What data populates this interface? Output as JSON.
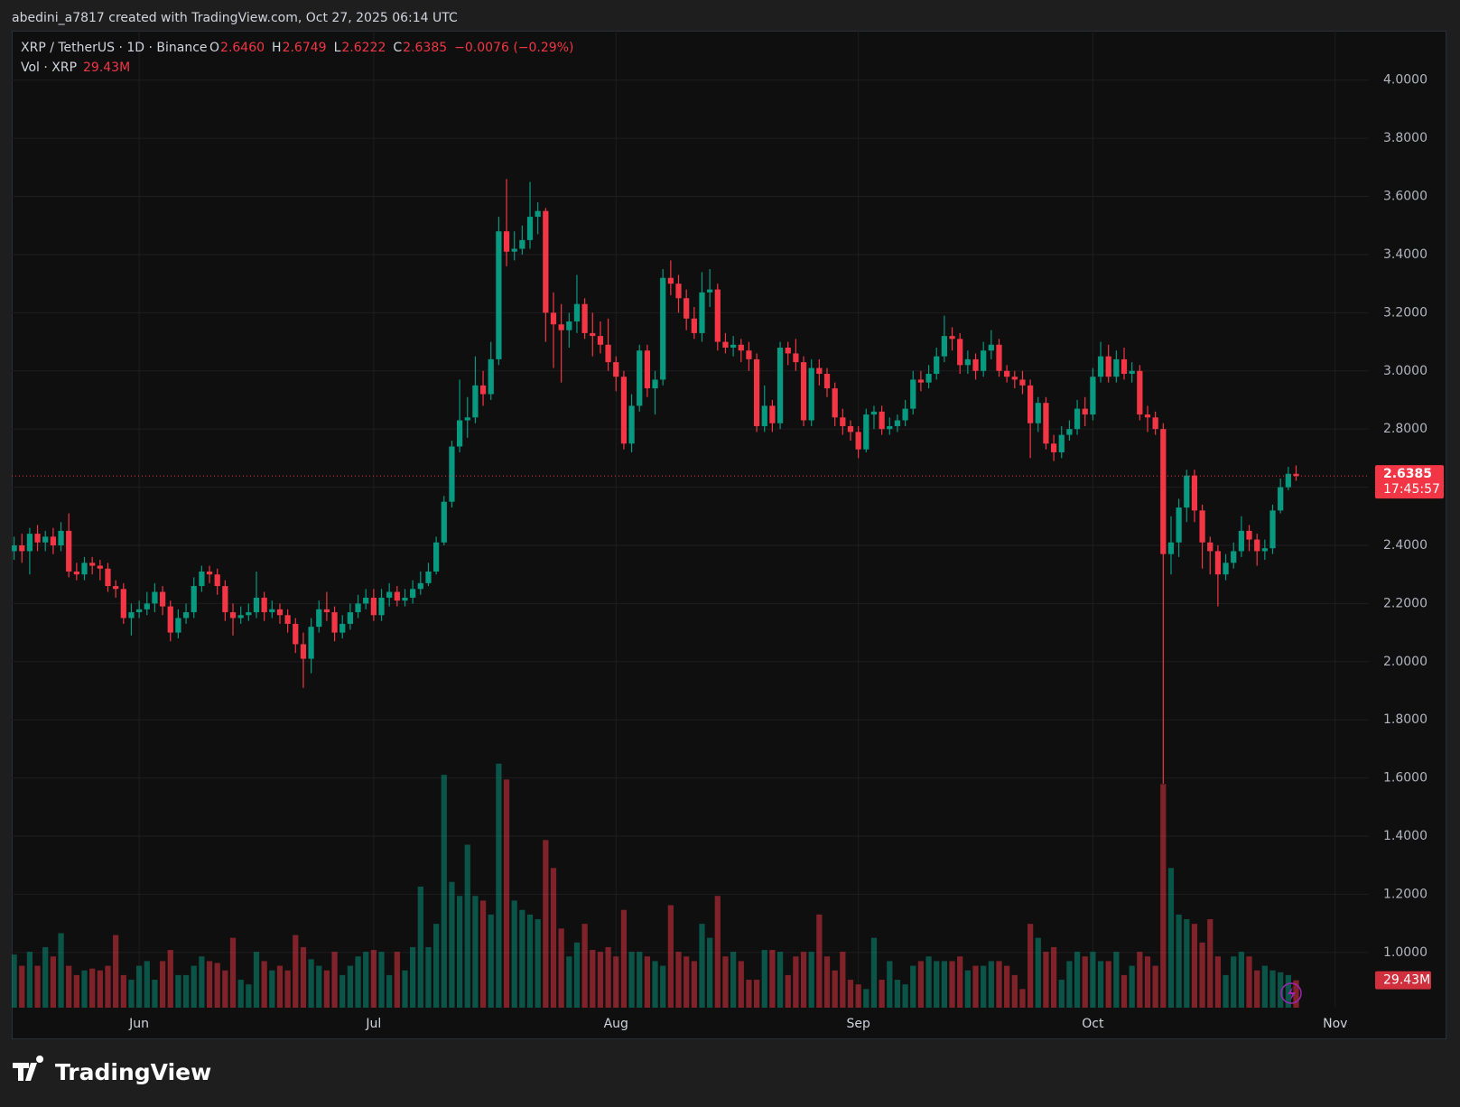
{
  "header": {
    "credit": "abedini_a7817 created with TradingView.com, Oct 27, 2025 06:14 UTC"
  },
  "footer": {
    "logo": "TradingView"
  },
  "chart_data": {
    "type": "candlestick",
    "symbol": "XRP / TetherUS · 1D · Binance",
    "legend_items": [
      {
        "key": "O",
        "value": "2.6460"
      },
      {
        "key": "H",
        "value": "2.6749"
      },
      {
        "key": "L",
        "value": "2.6222"
      },
      {
        "key": "C",
        "value": "2.6385"
      }
    ],
    "change": "−0.0076 (−0.29%)",
    "volume_title": "Vol · XRP",
    "volume_value": "29.43M",
    "last_price_label": "2.6385",
    "countdown": "17:45:57",
    "volume_label": "29.43M",
    "up_color": "#089981",
    "down_color": "#f23645",
    "grid": true,
    "xlim": [
      -0.3,
      173.3
    ],
    "xticks": [
      {
        "value": 16,
        "label": "Jun"
      },
      {
        "value": 46,
        "label": "Jul"
      },
      {
        "value": 77,
        "label": "Aug"
      },
      {
        "value": 108,
        "label": "Sep"
      },
      {
        "value": 138,
        "label": "Oct"
      },
      {
        "value": 169,
        "label": "Nov"
      }
    ],
    "ylim": [
      0.81,
      4.17
    ],
    "yticks": [
      {
        "value": 1,
        "label": "1.0000"
      },
      {
        "value": 1.2,
        "label": "1.2000"
      },
      {
        "value": 1.4,
        "label": "1.4000"
      },
      {
        "value": 1.6,
        "label": "1.6000"
      },
      {
        "value": 1.8,
        "label": "1.8000"
      },
      {
        "value": 2,
        "label": "2.0000"
      },
      {
        "value": 2.2,
        "label": "2.2000"
      },
      {
        "value": 2.4,
        "label": "2.4000"
      },
      {
        "value": 2.6,
        "label": "2.6000"
      },
      {
        "value": 2.8,
        "label": "2.8000"
      },
      {
        "value": 3,
        "label": "3.0000"
      },
      {
        "value": 3.2,
        "label": "3.2000"
      },
      {
        "value": 3.4,
        "label": "3.4000"
      },
      {
        "value": 3.6,
        "label": "3.6000"
      },
      {
        "value": 3.8,
        "label": "3.8000"
      },
      {
        "value": 4,
        "label": "4.0000"
      }
    ],
    "vlim": [
      0,
      1049
    ],
    "open": [
      2.38,
      2.4,
      2.38,
      2.44,
      2.41,
      2.43,
      2.4,
      2.45,
      2.31,
      2.3,
      2.34,
      2.33,
      2.32,
      2.26,
      2.25,
      2.15,
      2.17,
      2.18,
      2.2,
      2.24,
      2.19,
      2.1,
      2.15,
      2.17,
      2.26,
      2.31,
      2.3,
      2.26,
      2.17,
      2.15,
      2.16,
      2.17,
      2.22,
      2.17,
      2.18,
      2.16,
      2.13,
      2.06,
      2.01,
      2.12,
      2.18,
      2.17,
      2.1,
      2.13,
      2.17,
      2.2,
      2.22,
      2.16,
      2.22,
      2.24,
      2.21,
      2.22,
      2.25,
      2.27,
      2.31,
      2.41,
      2.55,
      2.74,
      2.83,
      2.84,
      2.95,
      2.92,
      3.04,
      3.48,
      3.41,
      3.42,
      3.45,
      3.53,
      3.55,
      3.2,
      3.16,
      3.14,
      3.17,
      3.23,
      3.13,
      3.12,
      3.09,
      3.03,
      2.98,
      2.75,
      2.88,
      3.07,
      2.94,
      2.97,
      3.32,
      3.3,
      3.25,
      3.18,
      3.13,
      3.27,
      3.28,
      3.1,
      3.08,
      3.09,
      3.07,
      3.04,
      2.81,
      2.88,
      2.82,
      3.08,
      3.06,
      3.03,
      2.83,
      3.01,
      2.99,
      2.94,
      2.84,
      2.81,
      2.79,
      2.73,
      2.85,
      2.86,
      2.8,
      2.81,
      2.83,
      2.87,
      2.97,
      2.96,
      2.99,
      3.05,
      3.12,
      3.11,
      3.02,
      3.04,
      3.0,
      3.07,
      3.09,
      3.0,
      2.98,
      2.97,
      2.95,
      2.82,
      2.89,
      2.75,
      2.72,
      2.78,
      2.8,
      2.87,
      2.85,
      2.98,
      3.05,
      2.98,
      3.04,
      2.99,
      3.0,
      2.85,
      2.84,
      2.8,
      2.37,
      2.41,
      2.53,
      2.64,
      2.52,
      2.41,
      2.38,
      2.3,
      2.34,
      2.38,
      2.45,
      2.42,
      2.38,
      2.39,
      2.52,
      2.6,
      2.646
    ],
    "high": [
      2.43,
      2.44,
      2.46,
      2.47,
      2.45,
      2.46,
      2.48,
      2.51,
      2.34,
      2.36,
      2.36,
      2.35,
      2.34,
      2.28,
      2.27,
      2.2,
      2.21,
      2.24,
      2.27,
      2.26,
      2.21,
      2.18,
      2.2,
      2.29,
      2.33,
      2.33,
      2.32,
      2.28,
      2.2,
      2.19,
      2.2,
      2.31,
      2.24,
      2.21,
      2.2,
      2.18,
      2.15,
      2.1,
      2.15,
      2.21,
      2.24,
      2.19,
      2.16,
      2.2,
      2.23,
      2.25,
      2.25,
      2.25,
      2.27,
      2.26,
      2.25,
      2.28,
      2.31,
      2.34,
      2.43,
      2.57,
      2.76,
      2.97,
      2.91,
      3.05,
      3.0,
      3.1,
      3.53,
      3.66,
      3.48,
      3.5,
      3.65,
      3.58,
      3.56,
      3.27,
      3.23,
      3.2,
      3.33,
      3.25,
      3.2,
      3.17,
      3.18,
      3.05,
      3.0,
      2.92,
      3.09,
      3.09,
      3.0,
      3.35,
      3.38,
      3.33,
      3.28,
      3.22,
      3.34,
      3.35,
      3.3,
      3.13,
      3.12,
      3.11,
      3.1,
      3.06,
      2.95,
      2.9,
      3.1,
      3.1,
      3.11,
      3.05,
      3.04,
      3.04,
      3.01,
      2.96,
      2.87,
      2.83,
      2.81,
      2.87,
      2.88,
      2.88,
      2.84,
      2.85,
      2.9,
      3.0,
      3.0,
      3.02,
      3.08,
      3.19,
      3.15,
      3.13,
      3.07,
      3.06,
      3.1,
      3.14,
      3.11,
      3.02,
      3.0,
      3.0,
      2.97,
      2.91,
      2.91,
      2.78,
      2.81,
      2.83,
      2.9,
      2.91,
      3.01,
      3.1,
      3.09,
      3.07,
      3.08,
      3.03,
      3.02,
      2.88,
      2.86,
      2.82,
      2.5,
      2.56,
      2.66,
      2.66,
      2.54,
      2.43,
      2.4,
      2.37,
      2.41,
      2.5,
      2.47,
      2.44,
      2.42,
      2.54,
      2.63,
      2.67,
      2.6749
    ],
    "low": [
      2.35,
      2.34,
      2.3,
      2.38,
      2.38,
      2.37,
      2.38,
      2.29,
      2.28,
      2.28,
      2.3,
      2.28,
      2.24,
      2.22,
      2.13,
      2.09,
      2.15,
      2.16,
      2.17,
      2.16,
      2.07,
      2.08,
      2.13,
      2.15,
      2.24,
      2.27,
      2.23,
      2.14,
      2.09,
      2.13,
      2.14,
      2.15,
      2.14,
      2.15,
      2.13,
      2.1,
      2.03,
      1.91,
      1.96,
      2.1,
      2.14,
      2.07,
      2.08,
      2.11,
      2.15,
      2.18,
      2.14,
      2.14,
      2.19,
      2.19,
      2.19,
      2.2,
      2.23,
      2.26,
      2.3,
      2.4,
      2.53,
      2.72,
      2.77,
      2.82,
      2.88,
      2.9,
      3.02,
      3.36,
      3.38,
      3.4,
      3.42,
      3.47,
      3.1,
      3.01,
      2.96,
      3.08,
      3.13,
      3.11,
      3.05,
      3.06,
      3.0,
      2.93,
      2.73,
      2.72,
      2.86,
      2.91,
      2.85,
      2.95,
      3.26,
      3.2,
      3.14,
      3.11,
      3.1,
      3.22,
      3.07,
      3.06,
      3.05,
      3.03,
      3.0,
      2.79,
      2.79,
      2.79,
      2.8,
      3.02,
      3.0,
      2.81,
      2.81,
      2.95,
      2.91,
      2.81,
      2.78,
      2.76,
      2.7,
      2.72,
      2.8,
      2.78,
      2.78,
      2.79,
      2.81,
      2.85,
      2.93,
      2.94,
      2.97,
      3.03,
      3.07,
      2.99,
      2.99,
      2.97,
      2.98,
      3.04,
      2.98,
      2.96,
      2.94,
      2.92,
      2.7,
      2.79,
      2.73,
      2.69,
      2.7,
      2.76,
      2.78,
      2.81,
      2.83,
      2.96,
      2.96,
      2.96,
      2.97,
      2.96,
      2.83,
      2.79,
      2.78,
      1.58,
      2.3,
      2.36,
      2.48,
      2.48,
      2.32,
      2.3,
      2.19,
      2.28,
      2.32,
      2.36,
      2.38,
      2.33,
      2.35,
      2.37,
      2.51,
      2.59,
      2.6222
    ],
    "close": [
      2.4,
      2.38,
      2.44,
      2.41,
      2.43,
      2.4,
      2.45,
      2.31,
      2.3,
      2.34,
      2.33,
      2.32,
      2.26,
      2.25,
      2.15,
      2.17,
      2.18,
      2.2,
      2.24,
      2.19,
      2.1,
      2.15,
      2.17,
      2.26,
      2.31,
      2.3,
      2.26,
      2.17,
      2.15,
      2.16,
      2.17,
      2.22,
      2.17,
      2.18,
      2.16,
      2.13,
      2.06,
      2.01,
      2.12,
      2.18,
      2.17,
      2.1,
      2.13,
      2.17,
      2.2,
      2.22,
      2.16,
      2.22,
      2.24,
      2.21,
      2.22,
      2.25,
      2.27,
      2.31,
      2.41,
      2.55,
      2.74,
      2.83,
      2.84,
      2.95,
      2.92,
      3.04,
      3.48,
      3.41,
      3.42,
      3.45,
      3.53,
      3.55,
      3.2,
      3.16,
      3.14,
      3.17,
      3.23,
      3.13,
      3.12,
      3.09,
      3.03,
      2.98,
      2.75,
      2.88,
      3.07,
      2.94,
      2.97,
      3.32,
      3.3,
      3.25,
      3.18,
      3.13,
      3.27,
      3.28,
      3.1,
      3.08,
      3.09,
      3.07,
      3.04,
      2.81,
      2.88,
      2.82,
      3.08,
      3.06,
      3.03,
      2.83,
      3.01,
      2.99,
      2.94,
      2.84,
      2.81,
      2.79,
      2.73,
      2.85,
      2.86,
      2.8,
      2.81,
      2.83,
      2.87,
      2.97,
      2.96,
      2.99,
      3.05,
      3.12,
      3.11,
      3.02,
      3.04,
      3.0,
      3.07,
      3.09,
      3.0,
      2.98,
      2.97,
      2.95,
      2.82,
      2.89,
      2.75,
      2.72,
      2.78,
      2.8,
      2.87,
      2.85,
      2.98,
      3.05,
      2.98,
      3.04,
      2.99,
      3.0,
      2.85,
      2.84,
      2.8,
      2.37,
      2.41,
      2.53,
      2.64,
      2.52,
      2.41,
      2.38,
      2.3,
      2.34,
      2.38,
      2.45,
      2.42,
      2.38,
      2.39,
      2.52,
      2.6,
      2.646,
      2.6385
    ],
    "volume": [
      57,
      45,
      60,
      45,
      65,
      55,
      80,
      45,
      35,
      40,
      42,
      40,
      45,
      78,
      35,
      30,
      45,
      50,
      30,
      50,
      62,
      35,
      35,
      45,
      55,
      50,
      48,
      40,
      75,
      30,
      25,
      60,
      50,
      40,
      45,
      40,
      78,
      65,
      52,
      45,
      40,
      60,
      35,
      45,
      55,
      60,
      62,
      60,
      35,
      60,
      40,
      65,
      130,
      65,
      90,
      250,
      135,
      120,
      175,
      120,
      115,
      100,
      262,
      245,
      115,
      105,
      100,
      95,
      180,
      150,
      85,
      55,
      70,
      90,
      62,
      60,
      65,
      55,
      105,
      60,
      60,
      55,
      50,
      45,
      110,
      60,
      55,
      50,
      90,
      75,
      120,
      55,
      60,
      50,
      30,
      30,
      62,
      62,
      60,
      35,
      55,
      60,
      60,
      100,
      55,
      40,
      60,
      30,
      25,
      20,
      75,
      30,
      50,
      30,
      25,
      45,
      50,
      55,
      50,
      50,
      50,
      55,
      40,
      45,
      45,
      50,
      50,
      45,
      35,
      20,
      90,
      75,
      60,
      65,
      30,
      50,
      60,
      55,
      60,
      50,
      50,
      60,
      35,
      45,
      60,
      55,
      45,
      240,
      150,
      100,
      95,
      90,
      70,
      95,
      55,
      35,
      55,
      60,
      55,
      40,
      45,
      40,
      38,
      35,
      29.43
    ]
  }
}
